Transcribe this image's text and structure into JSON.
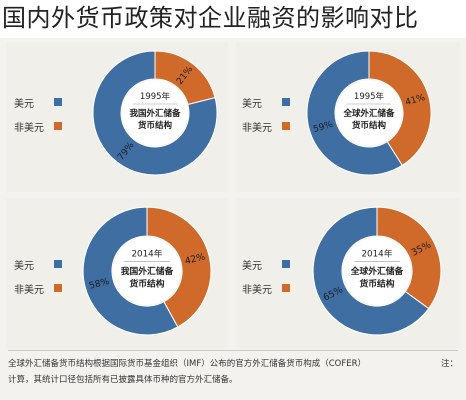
{
  "title": "国内外货币政策对企业融资的影响对比",
  "colors": {
    "usd": "#3f6ea3",
    "non_usd": "#cf6a2a",
    "center_fill": "#ffffff"
  },
  "legend": {
    "usd": "美元",
    "non_usd": "非美元"
  },
  "chart_data": [
    {
      "type": "pie",
      "year": "1995年",
      "center_label": [
        "我国外汇储备",
        "货币结构"
      ],
      "series": [
        {
          "name": "美元",
          "value": 79,
          "label": "79%"
        },
        {
          "name": "非美元",
          "value": 21,
          "label": "21%"
        }
      ]
    },
    {
      "type": "pie",
      "year": "1995年",
      "center_label": [
        "全球外汇储备",
        "货币结构"
      ],
      "series": [
        {
          "name": "美元",
          "value": 59,
          "label": "59%"
        },
        {
          "name": "非美元",
          "value": 41,
          "label": "41%"
        }
      ]
    },
    {
      "type": "pie",
      "year": "2014年",
      "center_label": [
        "我国外汇储备",
        "货币结构"
      ],
      "series": [
        {
          "name": "美元",
          "value": 58,
          "label": "58%"
        },
        {
          "name": "非美元",
          "value": 42,
          "label": "42%"
        }
      ]
    },
    {
      "type": "pie",
      "year": "2014年",
      "center_label": [
        "全球外汇储备",
        "货币结构"
      ],
      "series": [
        {
          "name": "美元",
          "value": 65,
          "label": "65%"
        },
        {
          "name": "非美元",
          "value": 35,
          "label": "35%"
        }
      ]
    }
  ],
  "note": {
    "prefix": "注：",
    "line1": "全球外汇储备货币结构根据国际货币基金组织（IMF）公布的官方外汇储备货币构成（COFER）",
    "line2": "计算，其统计口径包括所有已披露具体币种的官方外汇储备。"
  }
}
